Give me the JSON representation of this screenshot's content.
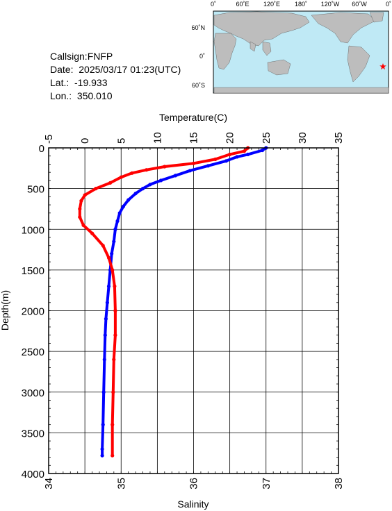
{
  "station": {
    "callsign": "Callsign:FNFP",
    "date": "Date:  2025/03/17 01:23(UTC)",
    "lat": "Lat.:  -19.933",
    "lon": "Lon.:  350.010"
  },
  "map": {
    "top_labels": [
      "0˚",
      "60˚E",
      "120˚E",
      "180˚",
      "120˚W",
      "60˚W",
      "0˚"
    ],
    "left_labels": [
      "60˚N",
      "0˚",
      "60˚S"
    ],
    "ocean_color": "#bfe9f5",
    "land_color": "#bdbdbd",
    "marker_color": "#ff0000",
    "marker": "star-icon"
  },
  "chart_data": {
    "type": "line",
    "top_axis_label": "Temperature(C)",
    "bottom_axis_label": "Salinity",
    "y_axis_label": "Depth(m)",
    "temperature_range": [
      -5,
      35
    ],
    "temperature_ticks": [
      "-5",
      "0",
      "5",
      "10",
      "15",
      "20",
      "25",
      "30",
      "35"
    ],
    "salinity_range": [
      34,
      38
    ],
    "salinity_ticks": [
      "34",
      "35",
      "36",
      "37",
      "38"
    ],
    "depth_range": [
      0,
      4000
    ],
    "depth_ticks": [
      "0",
      "500",
      "1000",
      "1500",
      "2000",
      "2500",
      "3000",
      "3500",
      "4000"
    ],
    "grid": true,
    "series": [
      {
        "quantity": "temperature",
        "color": "#0000ff",
        "points": [
          [
            25.0,
            0
          ],
          [
            24.5,
            30
          ],
          [
            22.5,
            80
          ],
          [
            21.0,
            110
          ],
          [
            19.5,
            160
          ],
          [
            17.0,
            220
          ],
          [
            14.5,
            280
          ],
          [
            12.5,
            340
          ],
          [
            10.5,
            400
          ],
          [
            9.0,
            450
          ],
          [
            8.0,
            500
          ],
          [
            7.0,
            560
          ],
          [
            6.0,
            640
          ],
          [
            5.3,
            720
          ],
          [
            4.8,
            800
          ],
          [
            4.5,
            900
          ],
          [
            4.2,
            1000
          ],
          [
            4.0,
            1150
          ],
          [
            3.7,
            1300
          ],
          [
            3.5,
            1500
          ],
          [
            3.3,
            1700
          ],
          [
            3.1,
            1900
          ],
          [
            2.9,
            2100
          ],
          [
            2.8,
            2300
          ],
          [
            2.7,
            2600
          ],
          [
            2.6,
            3000
          ],
          [
            2.5,
            3400
          ],
          [
            2.4,
            3700
          ],
          [
            2.4,
            3780
          ]
        ]
      },
      {
        "quantity": "salinity",
        "color": "#ff0000",
        "points": [
          [
            36.75,
            0
          ],
          [
            36.7,
            40
          ],
          [
            36.5,
            80
          ],
          [
            36.3,
            140
          ],
          [
            36.0,
            190
          ],
          [
            35.6,
            230
          ],
          [
            35.35,
            270
          ],
          [
            35.15,
            310
          ],
          [
            35.0,
            360
          ],
          [
            34.85,
            430
          ],
          [
            34.65,
            500
          ],
          [
            34.5,
            580
          ],
          [
            34.45,
            650
          ],
          [
            34.43,
            750
          ],
          [
            34.43,
            850
          ],
          [
            34.48,
            950
          ],
          [
            34.6,
            1050
          ],
          [
            34.75,
            1200
          ],
          [
            34.83,
            1350
          ],
          [
            34.88,
            1500
          ],
          [
            34.91,
            1700
          ],
          [
            34.92,
            2000
          ],
          [
            34.92,
            2300
          ],
          [
            34.9,
            2600
          ],
          [
            34.89,
            3000
          ],
          [
            34.88,
            3400
          ],
          [
            34.88,
            3780
          ]
        ]
      }
    ]
  }
}
